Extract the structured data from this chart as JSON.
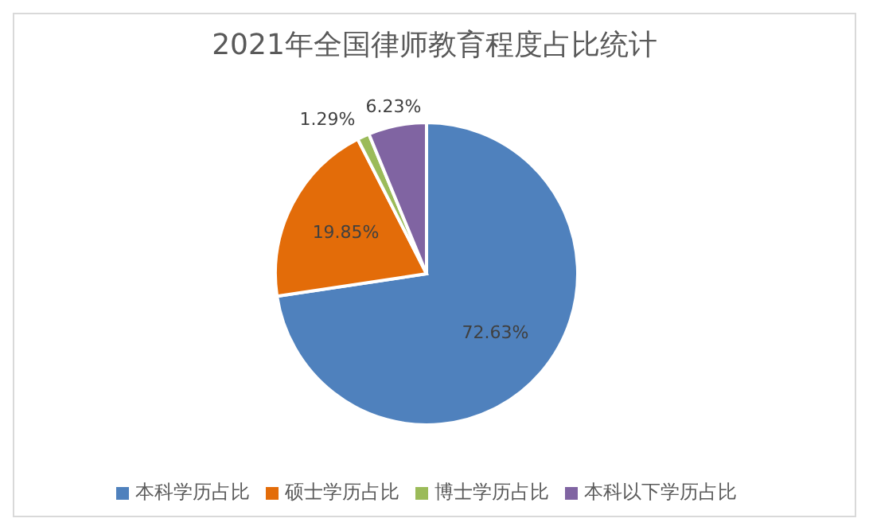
{
  "chart_data": {
    "type": "pie",
    "title": "2021年全国律师教育程度占比统计",
    "categories": [
      "本科学历占比",
      "硕士学历占比",
      "博士学历占比",
      "本科以下学历占比"
    ],
    "values": [
      72.63,
      19.85,
      1.29,
      6.23
    ],
    "value_labels": [
      "72.63%",
      "19.85%",
      "1.29%",
      "6.23%"
    ],
    "colors": [
      "#4f81bd",
      "#e36c09",
      "#9bbb59",
      "#8064a2"
    ],
    "legend": "bottom"
  }
}
